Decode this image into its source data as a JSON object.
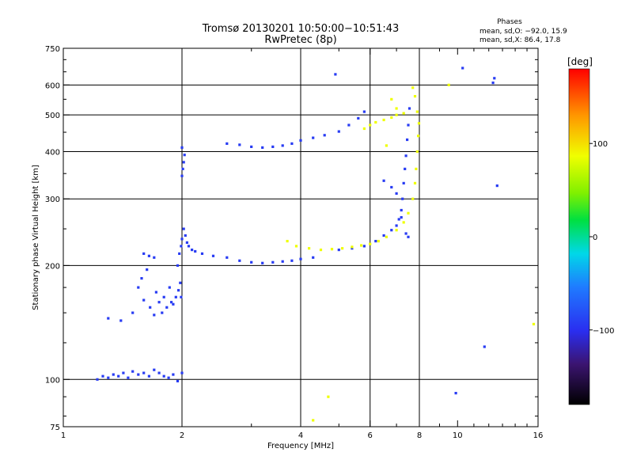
{
  "chart_data": {
    "type": "scatter",
    "title": "Tromsø 20130201 10:50:00−10:51:43",
    "subtitle": "RwPretec (8p)",
    "xlabel": "Frequency [MHz]",
    "ylabel": "Stationary phase Virtual Height [km]",
    "x_scale": "log",
    "y_scale": "log",
    "xlim": [
      1,
      16
    ],
    "ylim": [
      75,
      750
    ],
    "x_ticks": [
      1,
      2,
      4,
      6,
      8,
      10,
      16
    ],
    "x_tick_labels": [
      "1",
      "2",
      "4",
      "6",
      "8",
      "10",
      "16"
    ],
    "y_ticks": [
      75,
      100,
      200,
      300,
      400,
      500,
      600,
      750
    ],
    "y_tick_labels": [
      "75",
      "100",
      "200",
      "300",
      "400",
      "500",
      "600",
      "750"
    ],
    "grid": true,
    "phase_info": {
      "heading": "Phases",
      "line_o": "mean, sd,O: −92.0, 15.9",
      "line_x": "mean, sd,X: 86.4, 17.8"
    },
    "colorbar": {
      "unit": "[deg]",
      "range": [
        -180,
        180
      ],
      "ticks": [
        100,
        0,
        -100
      ],
      "tick_labels": [
        "100",
        "0",
        "−100"
      ]
    },
    "series": [
      {
        "mode": "O",
        "phase_deg": -92,
        "points": [
          [
            1.22,
            100
          ],
          [
            1.26,
            102
          ],
          [
            1.3,
            101
          ],
          [
            1.34,
            103
          ],
          [
            1.38,
            102
          ],
          [
            1.42,
            104
          ],
          [
            1.46,
            101
          ],
          [
            1.5,
            105
          ],
          [
            1.55,
            103
          ],
          [
            1.6,
            104
          ],
          [
            1.65,
            102
          ],
          [
            1.7,
            106
          ],
          [
            1.75,
            104
          ],
          [
            1.8,
            102
          ],
          [
            1.85,
            101
          ],
          [
            1.9,
            103
          ],
          [
            1.95,
            99
          ],
          [
            2.0,
            104
          ],
          [
            1.5,
            150
          ],
          [
            1.55,
            175
          ],
          [
            1.58,
            185
          ],
          [
            1.6,
            162
          ],
          [
            1.63,
            195
          ],
          [
            1.66,
            155
          ],
          [
            1.7,
            148
          ],
          [
            1.72,
            170
          ],
          [
            1.75,
            160
          ],
          [
            1.78,
            150
          ],
          [
            1.8,
            165
          ],
          [
            1.83,
            155
          ],
          [
            1.86,
            175
          ],
          [
            1.88,
            160
          ],
          [
            1.9,
            158
          ],
          [
            1.93,
            165
          ],
          [
            1.96,
            172
          ],
          [
            1.98,
            180
          ],
          [
            1.99,
            165
          ],
          [
            1.6,
            215
          ],
          [
            1.65,
            212
          ],
          [
            1.7,
            210
          ],
          [
            1.95,
            200
          ],
          [
            1.97,
            215
          ],
          [
            1.99,
            225
          ],
          [
            2.0,
            235
          ],
          [
            2.02,
            250
          ],
          [
            2.04,
            240
          ],
          [
            2.06,
            230
          ],
          [
            2.08,
            225
          ],
          [
            2.12,
            220
          ],
          [
            2.16,
            218
          ],
          [
            2.0,
            345
          ],
          [
            2.01,
            360
          ],
          [
            2.02,
            375
          ],
          [
            2.03,
            392
          ],
          [
            2.0,
            410
          ],
          [
            2.25,
            215
          ],
          [
            2.4,
            212
          ],
          [
            2.6,
            210
          ],
          [
            2.8,
            206
          ],
          [
            3.0,
            204
          ],
          [
            3.2,
            203
          ],
          [
            3.4,
            204
          ],
          [
            3.6,
            205
          ],
          [
            3.8,
            206
          ],
          [
            4.0,
            208
          ],
          [
            4.3,
            210
          ],
          [
            2.6,
            420
          ],
          [
            2.8,
            417
          ],
          [
            3.0,
            412
          ],
          [
            3.2,
            410
          ],
          [
            3.4,
            412
          ],
          [
            3.6,
            415
          ],
          [
            3.8,
            420
          ],
          [
            4.0,
            428
          ],
          [
            4.3,
            435
          ],
          [
            4.6,
            442
          ],
          [
            5.0,
            452
          ],
          [
            5.3,
            470
          ],
          [
            5.6,
            490
          ],
          [
            5.8,
            510
          ],
          [
            4.9,
            640
          ],
          [
            5.0,
            220
          ],
          [
            5.4,
            222
          ],
          [
            5.8,
            225
          ],
          [
            6.2,
            232
          ],
          [
            6.5,
            240
          ],
          [
            6.8,
            248
          ],
          [
            7.0,
            255
          ],
          [
            7.1,
            265
          ],
          [
            7.2,
            280
          ],
          [
            7.25,
            300
          ],
          [
            7.3,
            330
          ],
          [
            7.35,
            360
          ],
          [
            7.4,
            390
          ],
          [
            7.45,
            430
          ],
          [
            7.5,
            470
          ],
          [
            7.55,
            520
          ],
          [
            6.5,
            335
          ],
          [
            6.8,
            322
          ],
          [
            7.0,
            310
          ],
          [
            7.2,
            268
          ],
          [
            7.4,
            243
          ],
          [
            7.5,
            238
          ],
          [
            1.3,
            145
          ],
          [
            1.4,
            143
          ],
          [
            12.4,
            625
          ],
          [
            12.3,
            608
          ],
          [
            12.6,
            325
          ],
          [
            10.3,
            665
          ],
          [
            11.7,
            122
          ],
          [
            9.9,
            92
          ]
        ]
      },
      {
        "mode": "X",
        "phase_deg": 86,
        "points": [
          [
            3.7,
            232
          ],
          [
            3.9,
            225
          ],
          [
            4.2,
            222
          ],
          [
            4.5,
            220
          ],
          [
            4.8,
            221
          ],
          [
            5.1,
            222
          ],
          [
            5.4,
            224
          ],
          [
            5.7,
            226
          ],
          [
            6.0,
            228
          ],
          [
            6.3,
            232
          ],
          [
            6.6,
            238
          ],
          [
            7.0,
            248
          ],
          [
            7.3,
            260
          ],
          [
            7.5,
            275
          ],
          [
            7.7,
            300
          ],
          [
            7.8,
            330
          ],
          [
            7.85,
            360
          ],
          [
            7.9,
            400
          ],
          [
            7.95,
            440
          ],
          [
            7.98,
            475
          ],
          [
            7.9,
            510
          ],
          [
            7.8,
            560
          ],
          [
            7.7,
            590
          ],
          [
            5.8,
            460
          ],
          [
            6.0,
            470
          ],
          [
            6.2,
            478
          ],
          [
            6.5,
            485
          ],
          [
            6.8,
            492
          ],
          [
            7.0,
            500
          ],
          [
            7.3,
            505
          ],
          [
            4.3,
            78
          ],
          [
            4.7,
            90
          ],
          [
            6.6,
            415
          ],
          [
            7.0,
            520
          ],
          [
            6.8,
            550
          ],
          [
            15.6,
            140
          ],
          [
            9.5,
            600
          ]
        ]
      }
    ]
  }
}
